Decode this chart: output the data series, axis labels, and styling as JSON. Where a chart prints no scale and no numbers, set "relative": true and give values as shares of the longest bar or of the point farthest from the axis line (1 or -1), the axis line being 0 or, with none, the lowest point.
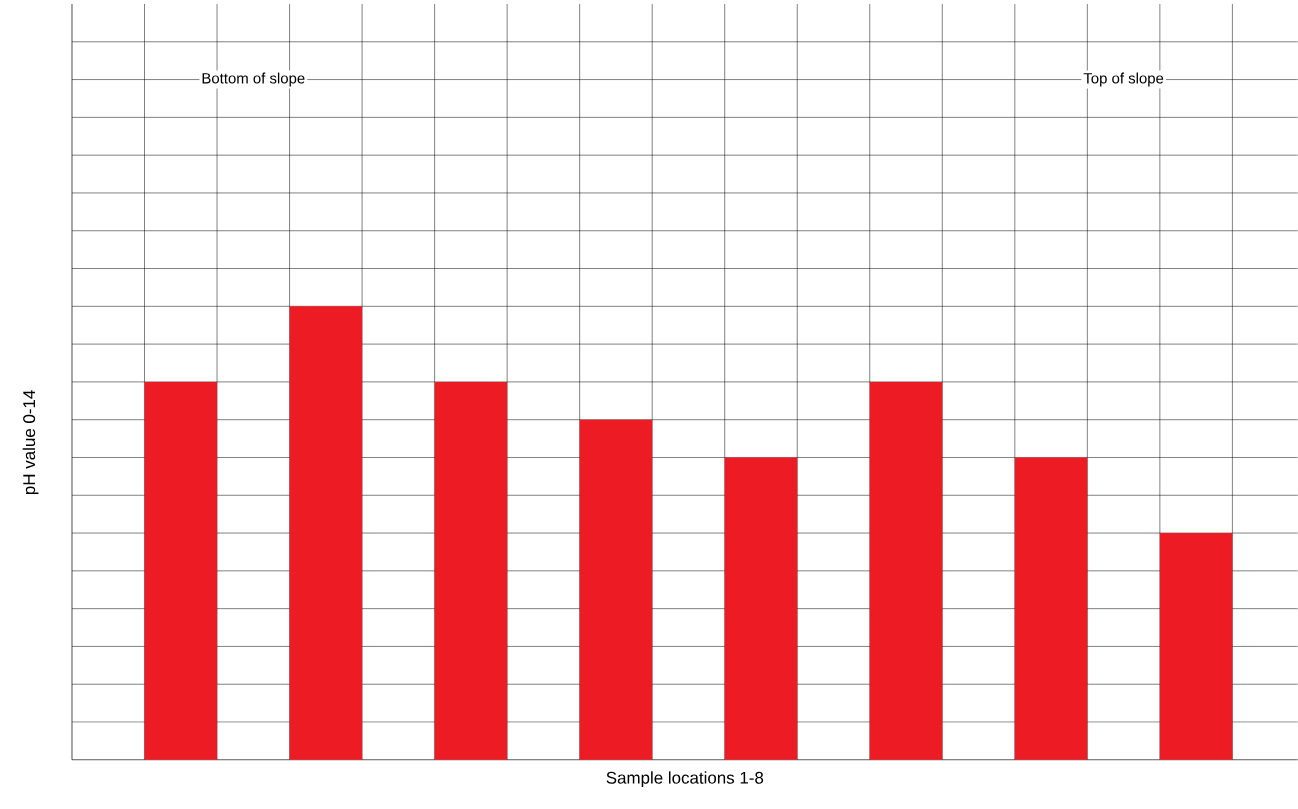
{
  "chart_data": {
    "type": "bar",
    "relative": true,
    "xlabel": "Sample locations 1-8",
    "ylabel": "pH value 0-14",
    "categories": [
      null,
      null,
      null,
      null,
      null,
      null,
      null,
      null
    ],
    "values": [
      0.8333,
      1,
      0.8333,
      0.75,
      0.6667,
      0.8333,
      0.6667,
      0.5
    ],
    "color": "#ed1c24",
    "grid": true,
    "annotations": [
      "Bottom of slope",
      "Top of slope"
    ]
  }
}
